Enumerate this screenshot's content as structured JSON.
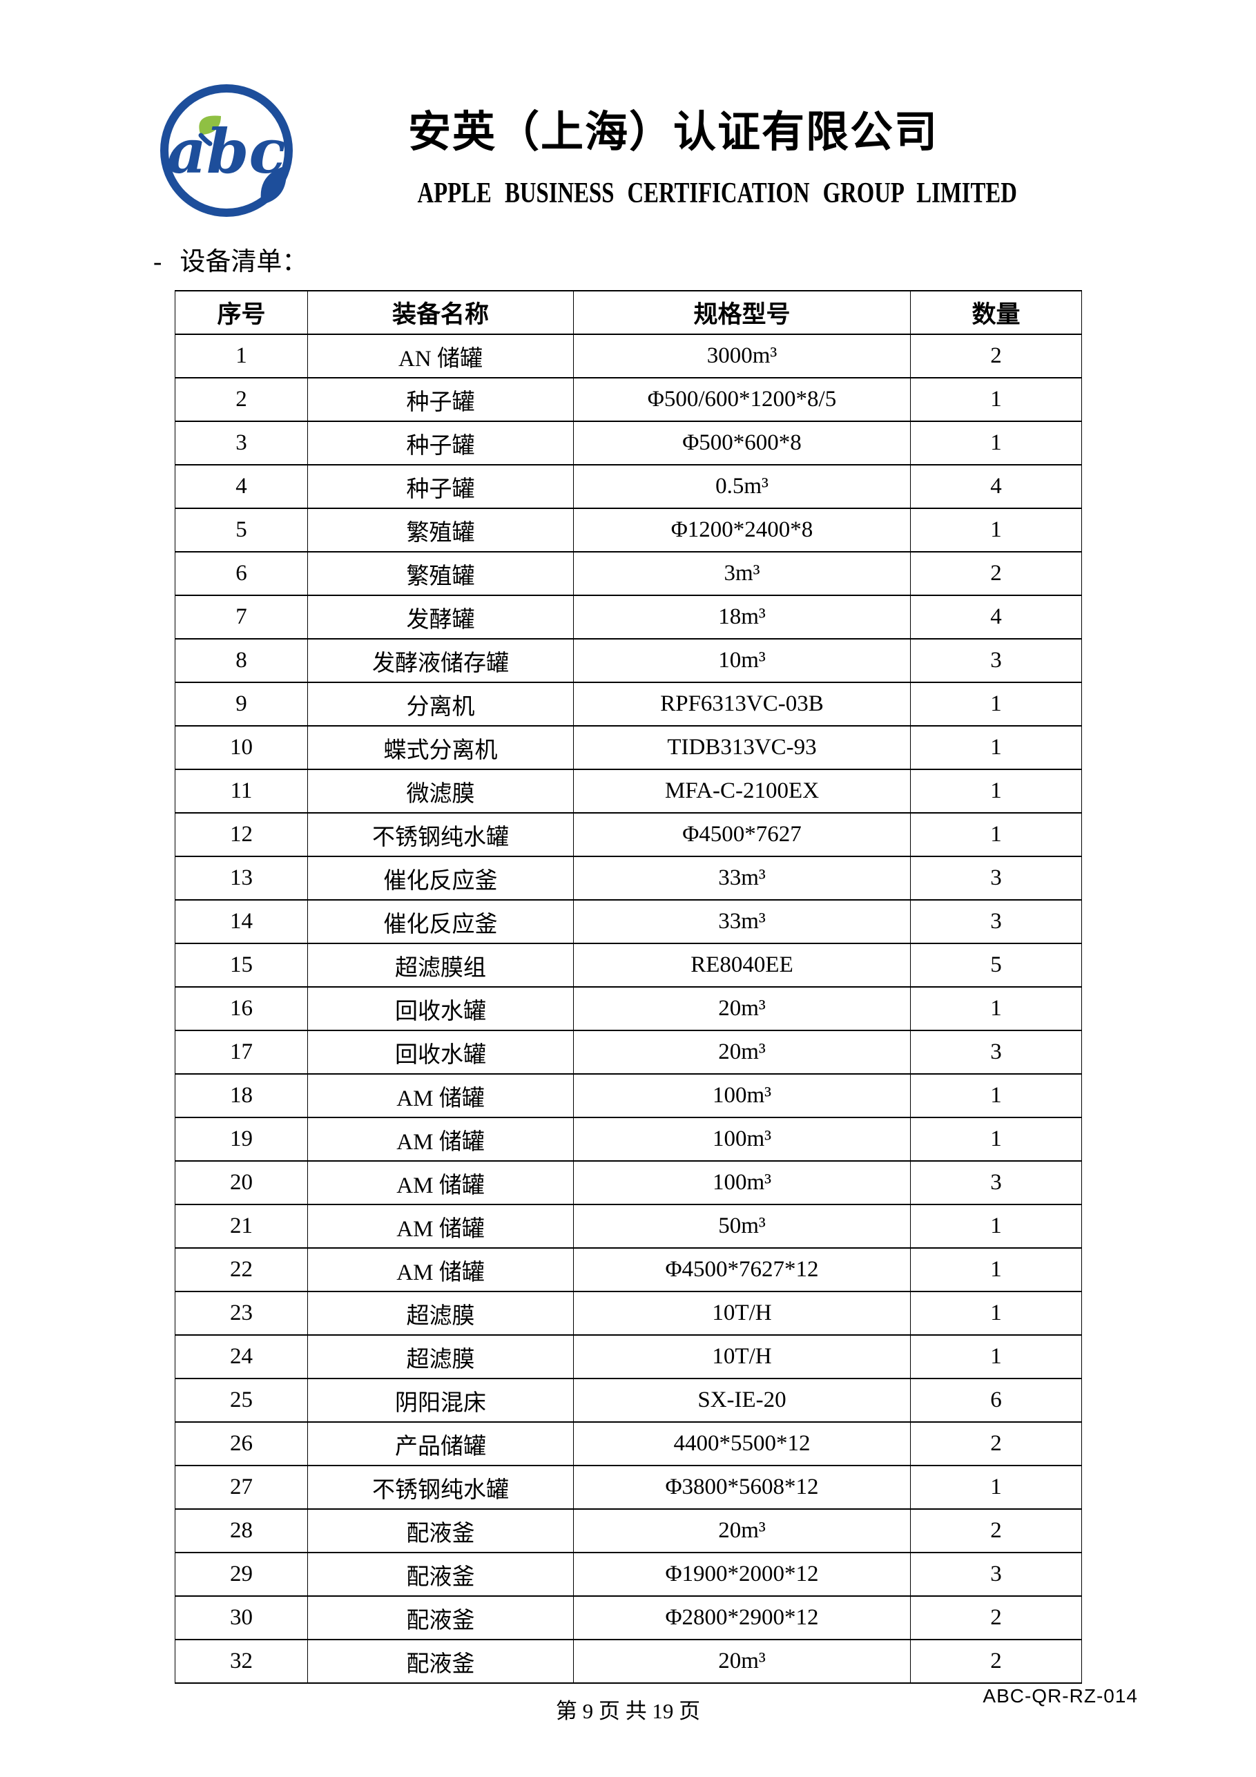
{
  "header": {
    "logo": {
      "text": "abc",
      "circle_color": "#1d4e9b",
      "leaf_green": "#8fc043"
    },
    "company_name_zh": "安英（上海）认证有限公司",
    "company_name_en": "APPLE BUSINESS CERTIFICATION GROUP LIMITED"
  },
  "section": {
    "dash": "-",
    "label": "设备清单："
  },
  "table": {
    "headers": [
      "序号",
      "装备名称",
      "规格型号",
      "数量"
    ],
    "rows": [
      [
        "1",
        "AN 储罐",
        "3000m³",
        "2"
      ],
      [
        "2",
        "种子罐",
        "Φ500/600*1200*8/5",
        "1"
      ],
      [
        "3",
        "种子罐",
        "Φ500*600*8",
        "1"
      ],
      [
        "4",
        "种子罐",
        "0.5m³",
        "4"
      ],
      [
        "5",
        "繁殖罐",
        "Φ1200*2400*8",
        "1"
      ],
      [
        "6",
        "繁殖罐",
        "3m³",
        "2"
      ],
      [
        "7",
        "发酵罐",
        "18m³",
        "4"
      ],
      [
        "8",
        "发酵液储存罐",
        "10m³",
        "3"
      ],
      [
        "9",
        "分离机",
        "RPF6313VC-03B",
        "1"
      ],
      [
        "10",
        "蝶式分离机",
        "TIDB313VC-93",
        "1"
      ],
      [
        "11",
        "微滤膜",
        "MFA-C-2100EX",
        "1"
      ],
      [
        "12",
        "不锈钢纯水罐",
        "Φ4500*7627",
        "1"
      ],
      [
        "13",
        "催化反应釜",
        "33m³",
        "3"
      ],
      [
        "14",
        "催化反应釜",
        "33m³",
        "3"
      ],
      [
        "15",
        "超滤膜组",
        "RE8040EE",
        "5"
      ],
      [
        "16",
        "回收水罐",
        "20m³",
        "1"
      ],
      [
        "17",
        "回收水罐",
        "20m³",
        "3"
      ],
      [
        "18",
        "AM 储罐",
        "100m³",
        "1"
      ],
      [
        "19",
        "AM 储罐",
        "100m³",
        "1"
      ],
      [
        "20",
        "AM 储罐",
        "100m³",
        "3"
      ],
      [
        "21",
        "AM 储罐",
        "50m³",
        "1"
      ],
      [
        "22",
        "AM 储罐",
        "Φ4500*7627*12",
        "1"
      ],
      [
        "23",
        "超滤膜",
        "10T/H",
        "1"
      ],
      [
        "24",
        "超滤膜",
        "10T/H",
        "1"
      ],
      [
        "25",
        "阴阳混床",
        "SX-IE-20",
        "6"
      ],
      [
        "26",
        "产品储罐",
        "4400*5500*12",
        "2"
      ],
      [
        "27",
        "不锈钢纯水罐",
        "Φ3800*5608*12",
        "1"
      ],
      [
        "28",
        "配液釜",
        "20m³",
        "2"
      ],
      [
        "29",
        "配液釜",
        "Φ1900*2000*12",
        "3"
      ],
      [
        "30",
        "配液釜",
        "Φ2800*2900*12",
        "2"
      ],
      [
        "32",
        "配液釜",
        "20m³",
        "2"
      ]
    ]
  },
  "footer": {
    "page_info": "第 9 页 共 19 页",
    "doc_code": "ABC-QR-RZ-014"
  }
}
